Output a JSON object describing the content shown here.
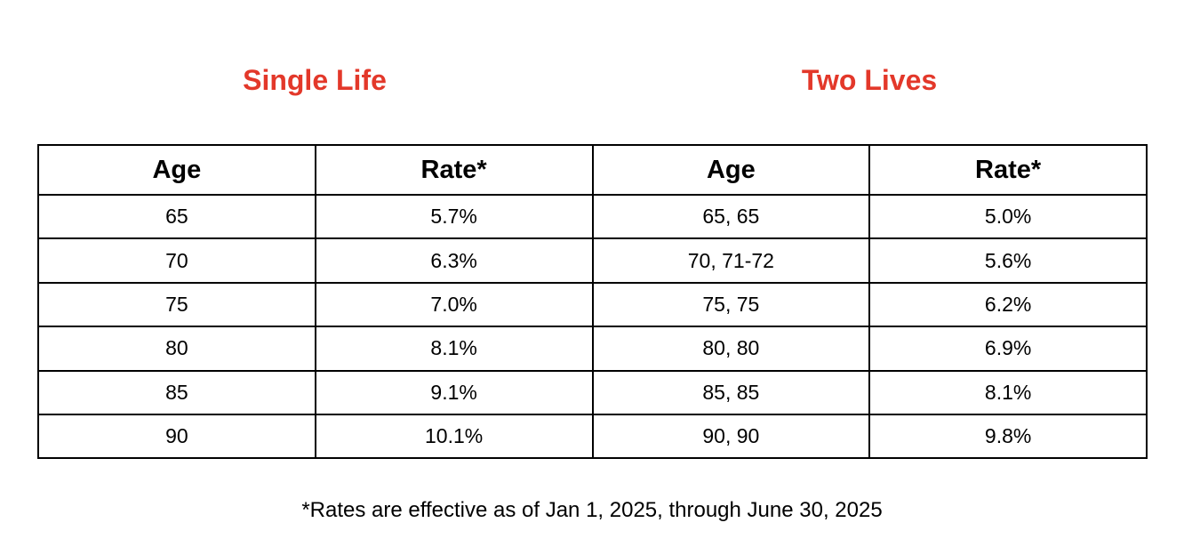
{
  "headings": [
    "Single Life",
    "Two Lives"
  ],
  "table": {
    "header": [
      "Age",
      "Rate*",
      "Age",
      "Rate*"
    ],
    "rows": [
      [
        "65",
        "5.7%",
        "65, 65",
        "5.0%"
      ],
      [
        "70",
        "6.3%",
        "70, 71-72",
        "5.6%"
      ],
      [
        "75",
        "7.0%",
        "75, 75",
        "6.2%"
      ],
      [
        "80",
        "8.1%",
        "80, 80",
        "6.9%"
      ],
      [
        "85",
        "9.1%",
        "85, 85",
        "8.1%"
      ],
      [
        "90",
        "10.1%",
        "90, 90",
        "9.8%"
      ]
    ]
  },
  "footnote": "*Rates are effective as of Jan 1, 2025, through June 30, 2025"
}
